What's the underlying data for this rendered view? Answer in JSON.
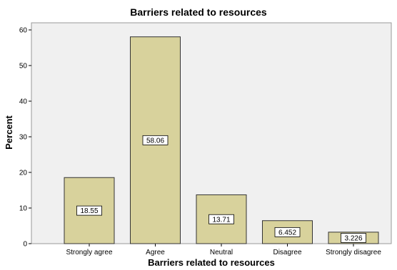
{
  "chart_data": {
    "type": "bar",
    "title": "Barriers related to resources",
    "xlabel": "Barriers related to resources",
    "ylabel": "Percent",
    "categories": [
      "Strongly agree",
      "Agree",
      "Neutral",
      "Disagree",
      "Strongly disagree"
    ],
    "values": [
      18.55,
      58.06,
      13.71,
      6.452,
      3.226
    ],
    "value_labels": [
      "18.55",
      "58.06",
      "13.71",
      "6.452",
      "3.226"
    ],
    "ylim": [
      0,
      62
    ],
    "yticks": [
      0,
      10,
      20,
      30,
      40,
      50,
      60
    ],
    "grid": false,
    "legend": "none",
    "colors": {
      "bar_fill": "#d8d29c",
      "bar_stroke": "#333333",
      "plot_background": "#f0f0f0",
      "label_box_fill": "#ffffff"
    }
  }
}
